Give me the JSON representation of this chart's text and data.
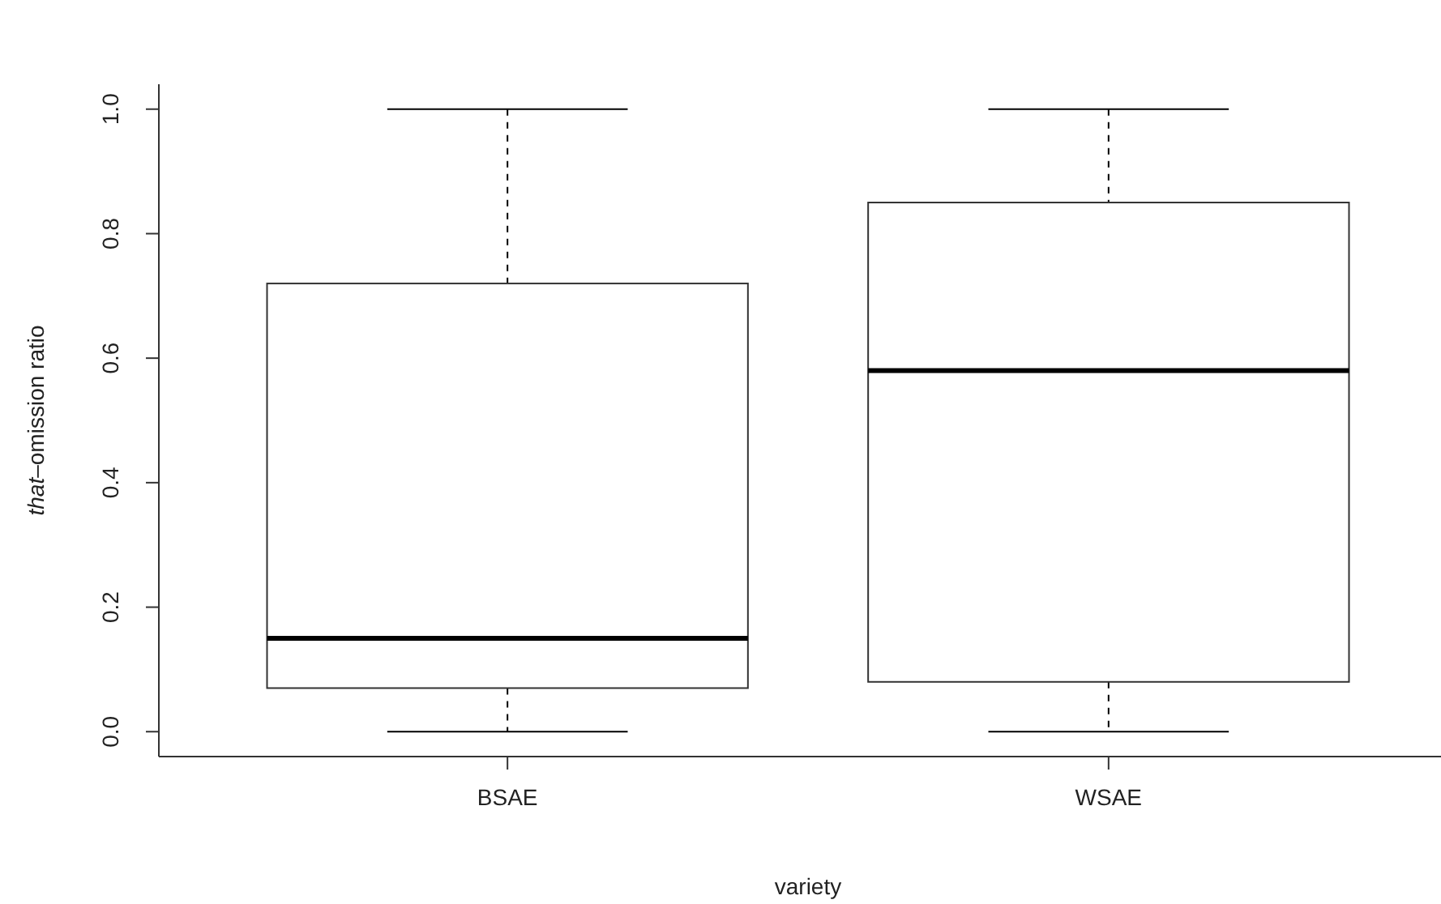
{
  "chart_data": {
    "type": "box",
    "xlabel": "variety",
    "ylabel": "that–omission ratio",
    "categories": [
      "BSAE",
      "WSAE"
    ],
    "boxes": [
      {
        "low": 0,
        "q1": 0.07,
        "median": 0.15,
        "q3": 0.72,
        "high": 1
      },
      {
        "low": 0,
        "q1": 0.08,
        "median": 0.58,
        "q3": 0.85,
        "high": 1
      }
    ],
    "ylim": [
      -0.04,
      1.04
    ],
    "yticks": [
      {
        "value": 0,
        "label": "0.0"
      },
      {
        "value": 0.2,
        "label": "0.2"
      },
      0.4,
      0.6,
      0.8,
      {
        "value": 1,
        "label": "1.0"
      }
    ],
    "grid": false
  }
}
